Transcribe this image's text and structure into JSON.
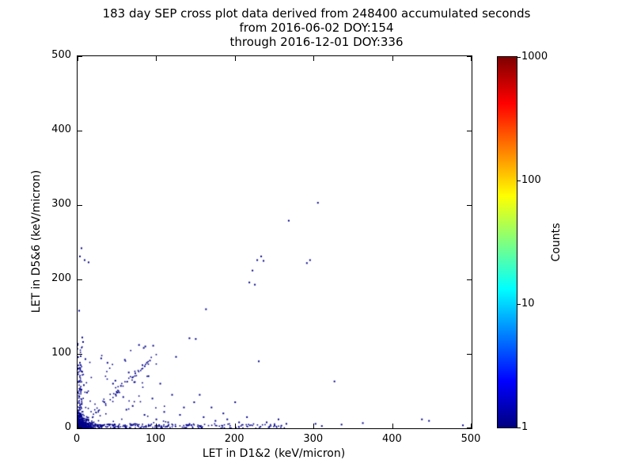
{
  "title": {
    "line1": "183 day SEP cross plot data derived from 248400 accumulated seconds",
    "line2": "from 2016-06-02 DOY:154",
    "line3": "through 2016-12-01 DOY:336"
  },
  "chart_data": {
    "type": "scatter",
    "xlabel": "LET in D1&2 (keV/micron)",
    "ylabel": "LET in D5&6 (keV/micron)",
    "xlim": [
      0,
      500
    ],
    "ylim": [
      0,
      500
    ],
    "xticks": [
      0,
      100,
      200,
      300,
      400,
      500
    ],
    "yticks": [
      0,
      100,
      200,
      300,
      400,
      500
    ],
    "grid": false,
    "point_color": "#000089",
    "accent_colors": [
      "#0000e0",
      "#0099cc"
    ],
    "colorbar": {
      "label": "Counts",
      "scale": "log",
      "min": 1,
      "max": 1000,
      "ticks": [
        1000,
        100,
        10,
        1
      ],
      "colormap": "jet",
      "stops": [
        {
          "pos": "0%",
          "color": "#00007f"
        },
        {
          "pos": "12.5%",
          "color": "#0000ff"
        },
        {
          "pos": "37.5%",
          "color": "#00ffff"
        },
        {
          "pos": "62.5%",
          "color": "#ffff00"
        },
        {
          "pos": "87.5%",
          "color": "#ff0000"
        },
        {
          "pos": "100%",
          "color": "#7f0000"
        }
      ]
    },
    "points": [
      [
        305,
        303
      ],
      [
        268,
        279
      ],
      [
        233,
        231
      ],
      [
        228,
        226
      ],
      [
        236,
        225
      ],
      [
        222,
        212
      ],
      [
        218,
        196
      ],
      [
        225,
        193
      ],
      [
        295,
        226
      ],
      [
        291,
        222
      ],
      [
        163,
        160
      ],
      [
        142,
        121
      ],
      [
        150,
        120
      ],
      [
        125,
        96
      ],
      [
        96,
        111
      ],
      [
        86,
        110
      ],
      [
        88,
        88
      ],
      [
        60,
        92
      ],
      [
        65,
        75
      ],
      [
        72,
        62
      ],
      [
        55,
        57
      ],
      [
        48,
        64
      ],
      [
        326,
        63
      ],
      [
        230,
        90
      ],
      [
        437,
        12
      ],
      [
        446,
        10
      ],
      [
        489,
        4
      ],
      [
        362,
        7
      ],
      [
        335,
        5
      ],
      [
        302,
        6
      ],
      [
        310,
        3
      ],
      [
        5,
        242
      ],
      [
        3,
        231
      ],
      [
        9,
        226
      ],
      [
        14,
        223
      ],
      [
        2,
        158
      ],
      [
        6,
        122
      ],
      [
        7,
        116
      ],
      [
        4,
        97
      ],
      [
        10,
        93
      ],
      [
        3,
        88
      ],
      [
        6,
        76
      ],
      [
        2,
        63
      ],
      [
        8,
        58
      ],
      [
        5,
        52
      ],
      [
        12,
        48
      ],
      [
        30,
        94
      ],
      [
        38,
        88
      ],
      [
        45,
        60
      ],
      [
        50,
        48
      ],
      [
        58,
        42
      ],
      [
        78,
        112
      ],
      [
        84,
        108
      ],
      [
        95,
        40
      ],
      [
        110,
        22
      ],
      [
        130,
        18
      ],
      [
        160,
        15
      ],
      [
        175,
        10
      ],
      [
        190,
        12
      ],
      [
        205,
        8
      ],
      [
        148,
        35
      ],
      [
        120,
        45
      ],
      [
        105,
        60
      ],
      [
        90,
        70
      ],
      [
        70,
        30
      ],
      [
        62,
        25
      ],
      [
        85,
        18
      ],
      [
        100,
        12
      ],
      [
        115,
        8
      ],
      [
        135,
        28
      ],
      [
        155,
        45
      ],
      [
        170,
        28
      ],
      [
        185,
        20
      ],
      [
        200,
        35
      ],
      [
        215,
        15
      ],
      [
        240,
        8
      ],
      [
        255,
        12
      ],
      [
        250,
        4
      ],
      [
        265,
        6
      ]
    ],
    "clusters": [
      {
        "name": "origin-dense-blob",
        "shape": "exp-blob",
        "n": 700,
        "xscale": 5,
        "yscale": 5,
        "xmax": 28,
        "ymax": 28
      },
      {
        "name": "x-axis-band",
        "shape": "band-x",
        "n": 320,
        "xmax": 265,
        "power": 2.2,
        "ymax": 6
      },
      {
        "name": "y-axis-band",
        "shape": "band-y",
        "n": 140,
        "ymax": 112,
        "power": 2.2,
        "xmax": 6
      },
      {
        "name": "diagonal-streak",
        "shape": "diag",
        "n": 70,
        "max": 95,
        "jitter": 7
      },
      {
        "name": "sparse-lower-left",
        "shape": "uniform",
        "n": 70,
        "xmax": 115,
        "ymax": 115,
        "power": 1.8
      }
    ]
  }
}
